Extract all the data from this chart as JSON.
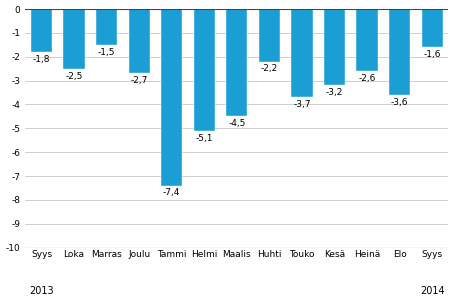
{
  "categories": [
    "Syys",
    "Loka",
    "Marras",
    "Joulu",
    "Tammi",
    "Helmi",
    "Maalis",
    "Huhti",
    "Touko",
    "Kesä",
    "Heinä",
    "Elo",
    "Syys"
  ],
  "values": [
    -1.8,
    -2.5,
    -1.5,
    -2.7,
    -7.4,
    -5.1,
    -4.5,
    -2.2,
    -3.7,
    -3.2,
    -2.6,
    -3.6,
    -1.6
  ],
  "bar_color": "#1a9ed4",
  "ylim": [
    -10,
    0
  ],
  "yticks": [
    0,
    -1,
    -2,
    -3,
    -4,
    -5,
    -6,
    -7,
    -8,
    -9,
    -10
  ],
  "label_fontsize": 6.5,
  "tick_fontsize": 6.5,
  "year_fontsize": 7.0,
  "background_color": "#ffffff",
  "bar_edge_color": "#ffffff",
  "bar_width": 0.65,
  "grid_color": "#bbbbbb",
  "spine_color": "#444444"
}
